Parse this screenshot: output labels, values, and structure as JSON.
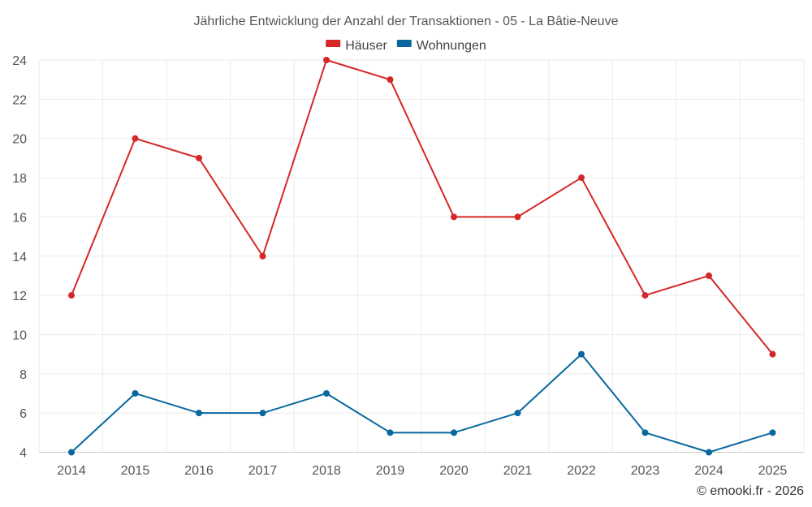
{
  "chart_data": {
    "type": "line",
    "title": "Jährliche Entwicklung der Anzahl der Transaktionen - 05 - La Bâtie-Neuve",
    "categories": [
      "2014",
      "2015",
      "2016",
      "2017",
      "2018",
      "2019",
      "2020",
      "2021",
      "2022",
      "2023",
      "2024",
      "2025"
    ],
    "series": [
      {
        "name": "Häuser",
        "color": "#d62728",
        "values": [
          12,
          20,
          19,
          14,
          24,
          23,
          16,
          16,
          18,
          12,
          13,
          9
        ]
      },
      {
        "name": "Wohnungen",
        "color": "#08689e",
        "values": [
          4,
          7,
          6,
          6,
          7,
          5,
          5,
          6,
          9,
          5,
          4,
          5
        ]
      }
    ],
    "ylim": [
      4,
      24
    ],
    "yticks": [
      "4",
      "6",
      "8",
      "10",
      "12",
      "14",
      "16",
      "18",
      "20",
      "22",
      "24"
    ],
    "grid": true,
    "legend_position": "top-center",
    "xlabel": "",
    "ylabel": ""
  },
  "credit": "© emooki.fr - 2026"
}
